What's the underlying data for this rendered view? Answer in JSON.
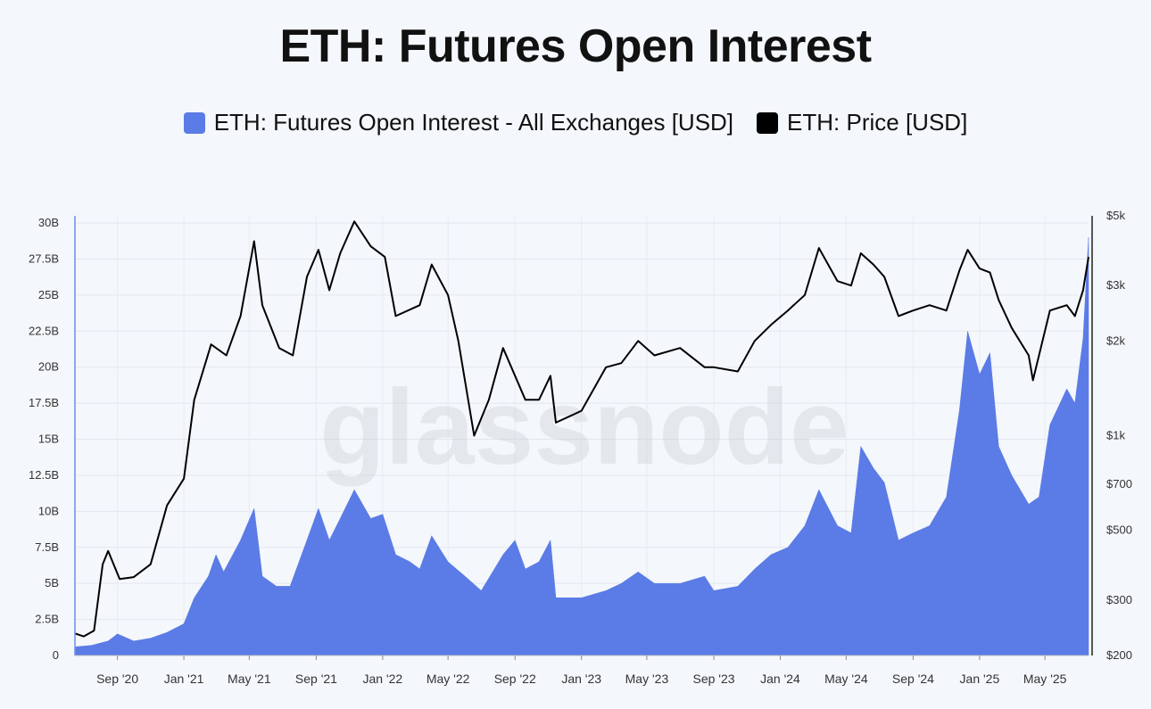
{
  "chart_data": {
    "type": "area+line",
    "title": "ETH: Futures Open Interest",
    "legend": [
      {
        "label": "ETH: Futures Open Interest - All Exchanges [USD]",
        "color": "#5b7be6"
      },
      {
        "label": "ETH: Price [USD]",
        "color": "#000000"
      }
    ],
    "legend_placement": "top-center",
    "watermark": "glassnode",
    "grid": true,
    "x_range": [
      "2020-06-15",
      "2025-07-20"
    ],
    "x_ticks": [
      {
        "date": "2020-09-01",
        "label": "Sep '20"
      },
      {
        "date": "2021-01-01",
        "label": "Jan '21"
      },
      {
        "date": "2021-05-01",
        "label": "May '21"
      },
      {
        "date": "2021-09-01",
        "label": "Sep '21"
      },
      {
        "date": "2022-01-01",
        "label": "Jan '22"
      },
      {
        "date": "2022-05-01",
        "label": "May '22"
      },
      {
        "date": "2022-09-01",
        "label": "Sep '22"
      },
      {
        "date": "2023-01-01",
        "label": "Jan '23"
      },
      {
        "date": "2023-05-01",
        "label": "May '23"
      },
      {
        "date": "2023-09-01",
        "label": "Sep '23"
      },
      {
        "date": "2024-01-01",
        "label": "Jan '24"
      },
      {
        "date": "2024-05-01",
        "label": "May '24"
      },
      {
        "date": "2024-09-01",
        "label": "Sep '24"
      },
      {
        "date": "2025-01-01",
        "label": "Jan '25"
      },
      {
        "date": "2025-05-01",
        "label": "May '25"
      }
    ],
    "y_left": {
      "ylim": [
        0,
        30500000000
      ],
      "ticks": [
        {
          "value": 0,
          "label": "0"
        },
        {
          "value": 2500000000,
          "label": "2.5B"
        },
        {
          "value": 5000000000,
          "label": "5B"
        },
        {
          "value": 7500000000,
          "label": "7.5B"
        },
        {
          "value": 10000000000,
          "label": "10B"
        },
        {
          "value": 12500000000,
          "label": "12.5B"
        },
        {
          "value": 15000000000,
          "label": "15B"
        },
        {
          "value": 17500000000,
          "label": "17.5B"
        },
        {
          "value": 20000000000,
          "label": "20B"
        },
        {
          "value": 22500000000,
          "label": "22.5B"
        },
        {
          "value": 25000000000,
          "label": "25B"
        },
        {
          "value": 27500000000,
          "label": "27.5B"
        },
        {
          "value": 30000000000,
          "label": "30B"
        }
      ]
    },
    "y_right": {
      "scale": "log",
      "ylim": [
        200,
        5000
      ],
      "ticks": [
        {
          "value": 200,
          "label": "$200"
        },
        {
          "value": 300,
          "label": "$300"
        },
        {
          "value": 500,
          "label": "$500"
        },
        {
          "value": 700,
          "label": "$700"
        },
        {
          "value": 1000,
          "label": "$1k"
        },
        {
          "value": 2000,
          "label": "$2k"
        },
        {
          "value": 3000,
          "label": "$3k"
        },
        {
          "value": 5000,
          "label": "$5k"
        }
      ]
    },
    "series": [
      {
        "name": "ETH: Futures Open Interest - All Exchanges [USD]",
        "kind": "area",
        "axis": "left",
        "color": "#5b7be6",
        "points": [
          [
            "2020-06-15",
            600000000.0
          ],
          [
            "2020-07-15",
            700000000.0
          ],
          [
            "2020-08-15",
            1000000000.0
          ],
          [
            "2020-09-01",
            1500000000.0
          ],
          [
            "2020-10-01",
            1000000000.0
          ],
          [
            "2020-11-01",
            1200000000.0
          ],
          [
            "2020-12-01",
            1600000000.0
          ],
          [
            "2021-01-01",
            2200000000.0
          ],
          [
            "2021-01-20",
            4000000000.0
          ],
          [
            "2021-02-15",
            5500000000.0
          ],
          [
            "2021-03-01",
            7000000000.0
          ],
          [
            "2021-03-15",
            5800000000.0
          ],
          [
            "2021-04-15",
            8000000000.0
          ],
          [
            "2021-05-10",
            10200000000.0
          ],
          [
            "2021-05-25",
            5500000000.0
          ],
          [
            "2021-06-20",
            4800000000.0
          ],
          [
            "2021-07-15",
            4800000000.0
          ],
          [
            "2021-08-15",
            8000000000.0
          ],
          [
            "2021-09-05",
            10200000000.0
          ],
          [
            "2021-09-25",
            8000000000.0
          ],
          [
            "2021-10-15",
            9500000000.0
          ],
          [
            "2021-11-10",
            11500000000.0
          ],
          [
            "2021-12-10",
            9500000000.0
          ],
          [
            "2022-01-01",
            9800000000.0
          ],
          [
            "2022-01-25",
            7000000000.0
          ],
          [
            "2022-02-20",
            6500000000.0
          ],
          [
            "2022-03-10",
            6000000000.0
          ],
          [
            "2022-04-01",
            8300000000.0
          ],
          [
            "2022-05-01",
            6500000000.0
          ],
          [
            "2022-06-01",
            5500000000.0
          ],
          [
            "2022-07-01",
            4500000000.0
          ],
          [
            "2022-08-10",
            7000000000.0
          ],
          [
            "2022-09-01",
            8000000000.0
          ],
          [
            "2022-09-20",
            6000000000.0
          ],
          [
            "2022-10-15",
            6500000000.0
          ],
          [
            "2022-11-05",
            8000000000.0
          ],
          [
            "2022-11-15",
            4000000000.0
          ],
          [
            "2023-01-01",
            4000000000.0
          ],
          [
            "2023-02-15",
            4500000000.0
          ],
          [
            "2023-03-15",
            5000000000.0
          ],
          [
            "2023-04-15",
            5800000000.0
          ],
          [
            "2023-05-15",
            5000000000.0
          ],
          [
            "2023-07-01",
            5000000000.0
          ],
          [
            "2023-08-15",
            5500000000.0
          ],
          [
            "2023-09-01",
            4500000000.0
          ],
          [
            "2023-10-15",
            4800000000.0
          ],
          [
            "2023-11-15",
            6000000000.0
          ],
          [
            "2023-12-15",
            7000000000.0
          ],
          [
            "2024-01-15",
            7500000000.0
          ],
          [
            "2024-02-15",
            9000000000.0
          ],
          [
            "2024-03-12",
            11500000000.0
          ],
          [
            "2024-04-15",
            9000000000.0
          ],
          [
            "2024-05-10",
            8500000000.0
          ],
          [
            "2024-05-28",
            14500000000.0
          ],
          [
            "2024-06-20",
            13000000000.0
          ],
          [
            "2024-07-10",
            12000000000.0
          ],
          [
            "2024-08-05",
            8000000000.0
          ],
          [
            "2024-09-01",
            8500000000.0
          ],
          [
            "2024-10-01",
            9000000000.0
          ],
          [
            "2024-11-01",
            11000000000.0
          ],
          [
            "2024-11-25",
            17000000000.0
          ],
          [
            "2024-12-10",
            22500000000.0
          ],
          [
            "2025-01-01",
            19500000000.0
          ],
          [
            "2025-01-20",
            21000000000.0
          ],
          [
            "2025-02-05",
            14500000000.0
          ],
          [
            "2025-03-01",
            12500000000.0
          ],
          [
            "2025-04-01",
            10500000000.0
          ],
          [
            "2025-04-20",
            11000000000.0
          ],
          [
            "2025-05-10",
            16000000000.0
          ],
          [
            "2025-06-10",
            18500000000.0
          ],
          [
            "2025-06-25",
            17500000000.0
          ],
          [
            "2025-07-10",
            22000000000.0
          ],
          [
            "2025-07-20",
            29000000000.0
          ]
        ]
      },
      {
        "name": "ETH: Price [USD]",
        "kind": "line",
        "axis": "right",
        "color": "#000000",
        "points": [
          [
            "2020-06-15",
            235
          ],
          [
            "2020-07-01",
            230
          ],
          [
            "2020-07-20",
            240
          ],
          [
            "2020-08-05",
            390
          ],
          [
            "2020-08-15",
            430
          ],
          [
            "2020-09-05",
            350
          ],
          [
            "2020-10-01",
            355
          ],
          [
            "2020-11-01",
            390
          ],
          [
            "2020-12-01",
            600
          ],
          [
            "2021-01-01",
            730
          ],
          [
            "2021-01-20",
            1300
          ],
          [
            "2021-02-20",
            1950
          ],
          [
            "2021-03-20",
            1800
          ],
          [
            "2021-04-15",
            2400
          ],
          [
            "2021-05-10",
            4150
          ],
          [
            "2021-05-25",
            2600
          ],
          [
            "2021-06-25",
            1900
          ],
          [
            "2021-07-20",
            1800
          ],
          [
            "2021-08-15",
            3200
          ],
          [
            "2021-09-05",
            3900
          ],
          [
            "2021-09-25",
            2900
          ],
          [
            "2021-10-15",
            3800
          ],
          [
            "2021-11-10",
            4800
          ],
          [
            "2021-12-10",
            4000
          ],
          [
            "2022-01-05",
            3700
          ],
          [
            "2022-01-25",
            2400
          ],
          [
            "2022-03-10",
            2600
          ],
          [
            "2022-04-01",
            3500
          ],
          [
            "2022-05-01",
            2800
          ],
          [
            "2022-05-20",
            2000
          ],
          [
            "2022-06-18",
            1000
          ],
          [
            "2022-07-15",
            1300
          ],
          [
            "2022-08-10",
            1900
          ],
          [
            "2022-09-20",
            1300
          ],
          [
            "2022-10-15",
            1300
          ],
          [
            "2022-11-05",
            1550
          ],
          [
            "2022-11-15",
            1100
          ],
          [
            "2023-01-01",
            1200
          ],
          [
            "2023-02-15",
            1650
          ],
          [
            "2023-03-15",
            1700
          ],
          [
            "2023-04-15",
            2000
          ],
          [
            "2023-05-15",
            1800
          ],
          [
            "2023-07-01",
            1900
          ],
          [
            "2023-08-15",
            1650
          ],
          [
            "2023-09-01",
            1650
          ],
          [
            "2023-10-15",
            1600
          ],
          [
            "2023-11-15",
            2000
          ],
          [
            "2023-12-15",
            2250
          ],
          [
            "2024-01-15",
            2500
          ],
          [
            "2024-02-15",
            2800
          ],
          [
            "2024-03-12",
            3950
          ],
          [
            "2024-04-15",
            3100
          ],
          [
            "2024-05-10",
            3000
          ],
          [
            "2024-05-28",
            3800
          ],
          [
            "2024-06-20",
            3500
          ],
          [
            "2024-07-10",
            3200
          ],
          [
            "2024-08-05",
            2400
          ],
          [
            "2024-09-01",
            2500
          ],
          [
            "2024-10-01",
            2600
          ],
          [
            "2024-11-01",
            2500
          ],
          [
            "2024-11-25",
            3350
          ],
          [
            "2024-12-10",
            3900
          ],
          [
            "2025-01-01",
            3400
          ],
          [
            "2025-01-20",
            3300
          ],
          [
            "2025-02-05",
            2700
          ],
          [
            "2025-03-01",
            2200
          ],
          [
            "2025-04-01",
            1800
          ],
          [
            "2025-04-09",
            1500
          ],
          [
            "2025-05-10",
            2500
          ],
          [
            "2025-06-10",
            2600
          ],
          [
            "2025-06-25",
            2400
          ],
          [
            "2025-07-10",
            2900
          ],
          [
            "2025-07-20",
            3700
          ]
        ]
      }
    ]
  }
}
